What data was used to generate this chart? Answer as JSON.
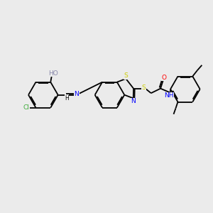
{
  "bg_color": "#ebebeb",
  "bond_color": "#000000",
  "bond_width": 1.3,
  "figsize": [
    3.0,
    3.0
  ],
  "dpi": 100,
  "colors": {
    "Cl": "#3aaa35",
    "HO": "#8888aa",
    "N": "#0000ff",
    "S": "#cccc00",
    "O": "#ff0000",
    "NH": "#0000ff",
    "C": "#000000"
  },
  "fontsize": 6.5
}
